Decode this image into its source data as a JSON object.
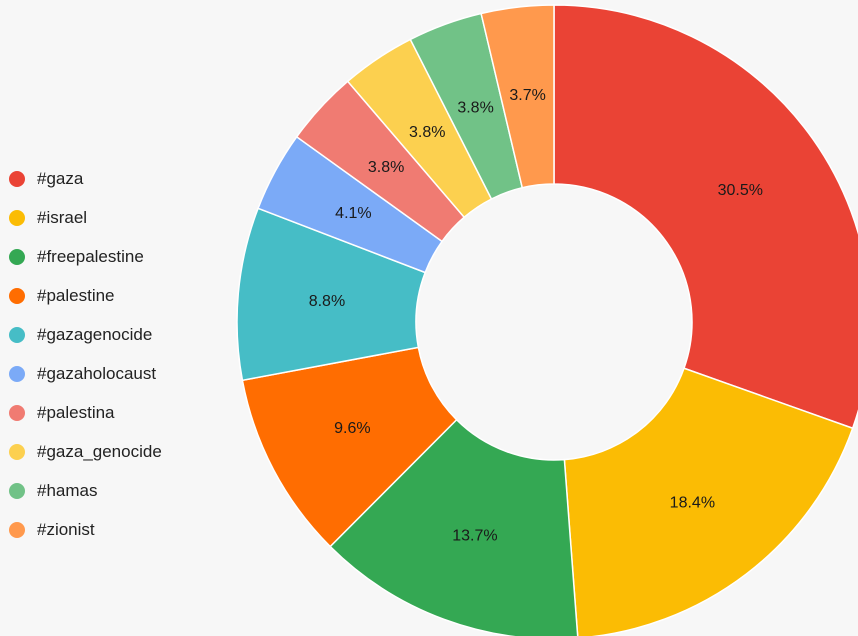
{
  "chart_data": {
    "type": "pie",
    "donut": true,
    "legend_position": "left",
    "categories": [
      "#gaza",
      "#israel",
      "#freepalestine",
      "#palestine",
      "#gazagenocide",
      "#gazaholocaust",
      "#palestina",
      "#gaza_genocide",
      "#hamas",
      "#zionist"
    ],
    "values": [
      30.5,
      18.4,
      13.7,
      9.6,
      8.8,
      4.1,
      3.8,
      3.8,
      3.8,
      3.7
    ],
    "data_labels": [
      "30.5%",
      "18.4%",
      "13.7%",
      "9.6%",
      "8.8%",
      "4.1%",
      "3.8%",
      "3.8%",
      "3.8%",
      "3.7%"
    ],
    "colors": [
      "#ea4335",
      "#fbbc04",
      "#34a853",
      "#ff6d01",
      "#46bdc6",
      "#7baaf7",
      "#f07b72",
      "#fcd04f",
      "#71c287",
      "#ff994d"
    ]
  }
}
